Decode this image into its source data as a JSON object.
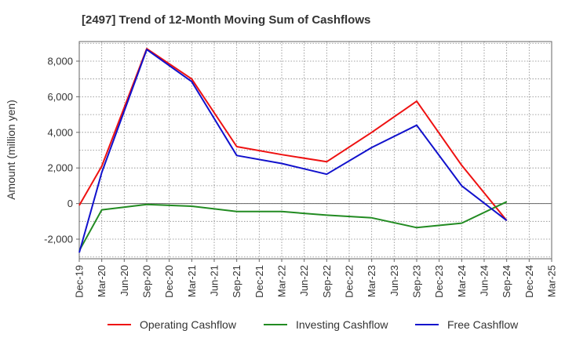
{
  "chart_data": {
    "type": "line",
    "title": "[2497]  Trend of 12-Month Moving Sum of Cashflows",
    "ylabel": "Amount (million yen)",
    "xlabel": "",
    "categories": [
      "Dec-19",
      "Mar-20",
      "Jun-20",
      "Sep-20",
      "Dec-20",
      "Mar-21",
      "Jun-21",
      "Sep-21",
      "Dec-21",
      "Mar-22",
      "Jun-22",
      "Sep-22",
      "Dec-22",
      "Mar-23",
      "Jun-23",
      "Sep-23",
      "Dec-23",
      "Mar-24",
      "Jun-24",
      "Sep-24",
      "Dec-24",
      "Mar-25"
    ],
    "ylim": [
      -3100,
      9100
    ],
    "yticks": [
      -2000,
      0,
      2000,
      4000,
      6000,
      8000
    ],
    "ytick_labels": [
      "-2,000",
      "0",
      "2,000",
      "4,000",
      "6,000",
      "8,000"
    ],
    "grid": true,
    "legend_position": "bottom",
    "series": [
      {
        "name": "Operating Cashflow",
        "color": "#ee1111",
        "points": [
          [
            0,
            -100
          ],
          [
            1,
            2100
          ],
          [
            3,
            8700
          ],
          [
            5,
            7000
          ],
          [
            7,
            3200
          ],
          [
            9,
            2750
          ],
          [
            11,
            2350
          ],
          [
            13,
            4000
          ],
          [
            15,
            5750
          ],
          [
            17,
            2150
          ],
          [
            19,
            -950
          ]
        ]
      },
      {
        "name": "Investing Cashflow",
        "color": "#228b22",
        "points": [
          [
            0,
            -2650
          ],
          [
            1,
            -350
          ],
          [
            3,
            -50
          ],
          [
            5,
            -150
          ],
          [
            7,
            -450
          ],
          [
            9,
            -450
          ],
          [
            11,
            -650
          ],
          [
            13,
            -800
          ],
          [
            15,
            -1350
          ],
          [
            17,
            -1100
          ],
          [
            19,
            100
          ]
        ]
      },
      {
        "name": "Free Cashflow",
        "color": "#1111cc",
        "points": [
          [
            0,
            -2750
          ],
          [
            1,
            1750
          ],
          [
            3,
            8650
          ],
          [
            5,
            6850
          ],
          [
            7,
            2700
          ],
          [
            9,
            2250
          ],
          [
            11,
            1650
          ],
          [
            13,
            3150
          ],
          [
            15,
            4400
          ],
          [
            17,
            1000
          ],
          [
            19,
            -950
          ]
        ]
      }
    ]
  }
}
